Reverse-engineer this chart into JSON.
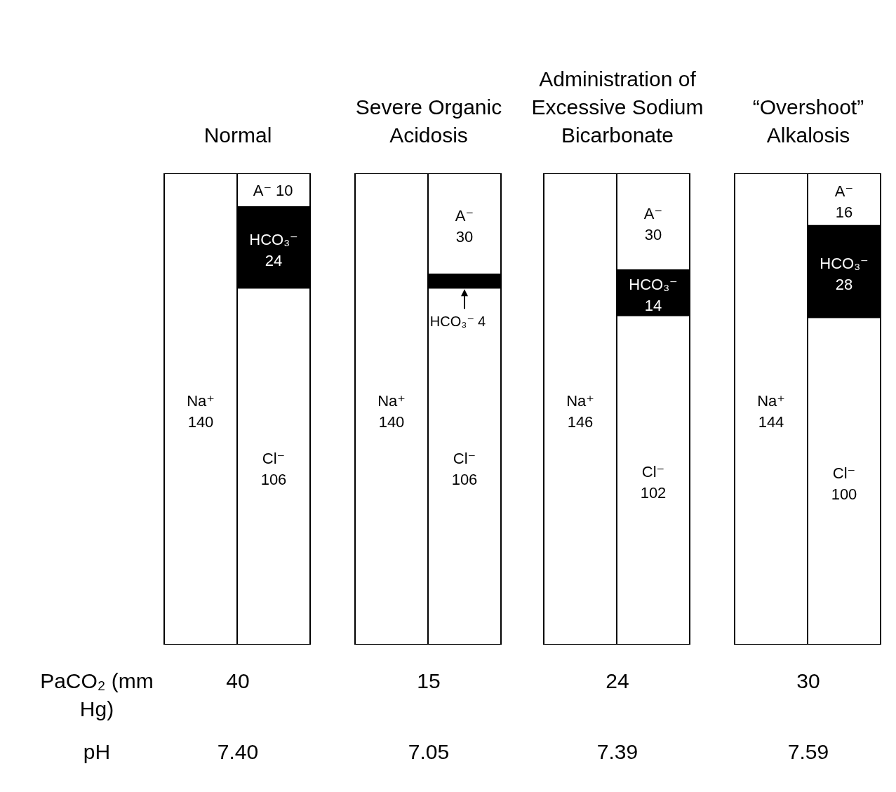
{
  "chart_data": [
    {
      "type": "bar",
      "stacked": true,
      "title": "Normal",
      "categories": [
        null,
        null
      ],
      "ylim": [
        0,
        140
      ],
      "tick_labels": false,
      "data_labels": true,
      "series": [
        {
          "name": "Na⁺",
          "color": "#ffffff",
          "values": [
            140,
            null
          ]
        },
        {
          "name": "Cl⁻",
          "color": "#ffffff",
          "values": [
            null,
            106
          ]
        },
        {
          "name": "HCO₃⁻",
          "color": "#000000",
          "values": [
            null,
            24
          ]
        },
        {
          "name": "A⁻",
          "color": "#ffffff",
          "values": [
            null,
            10
          ]
        }
      ],
      "annotations": [
        "40",
        "7.40",
        "PaCO₂ (mm Hg)",
        "pH"
      ]
    },
    {
      "type": "bar",
      "stacked": true,
      "title": "Severe Organic Acidosis",
      "categories": [
        null,
        null
      ],
      "ylim": [
        0,
        140
      ],
      "tick_labels": false,
      "data_labels": true,
      "series": [
        {
          "name": "Na⁺",
          "color": "#ffffff",
          "values": [
            140,
            null
          ]
        },
        {
          "name": "Cl⁻",
          "color": "#ffffff",
          "values": [
            null,
            106
          ]
        },
        {
          "name": "HCO₃⁻",
          "color": "#000000",
          "values": [
            null,
            4
          ]
        },
        {
          "name": "A⁻",
          "color": "#ffffff",
          "values": [
            null,
            30
          ]
        }
      ],
      "annotations": [
        "15",
        "7.05"
      ]
    },
    {
      "type": "bar",
      "stacked": true,
      "title": "Administration of Excessive Sodium Bicarbonate",
      "categories": [
        null,
        null
      ],
      "ylim": [
        0,
        146
      ],
      "tick_labels": false,
      "data_labels": true,
      "series": [
        {
          "name": "Na⁺",
          "color": "#ffffff",
          "values": [
            146,
            null
          ]
        },
        {
          "name": "Cl⁻",
          "color": "#ffffff",
          "values": [
            null,
            102
          ]
        },
        {
          "name": "HCO₃⁻",
          "color": "#000000",
          "values": [
            null,
            14
          ]
        },
        {
          "name": "A⁻",
          "color": "#ffffff",
          "values": [
            null,
            30
          ]
        }
      ],
      "annotations": [
        "24",
        "7.39"
      ]
    },
    {
      "type": "bar",
      "stacked": true,
      "title": "“Overshoot” Alkalosis",
      "categories": [
        null,
        null
      ],
      "ylim": [
        0,
        144
      ],
      "tick_labels": false,
      "data_labels": true,
      "series": [
        {
          "name": "Na⁺",
          "color": "#ffffff",
          "values": [
            144,
            null
          ]
        },
        {
          "name": "Cl⁻",
          "color": "#ffffff",
          "values": [
            null,
            100
          ]
        },
        {
          "name": "HCO₃⁻",
          "color": "#000000",
          "values": [
            null,
            28
          ]
        },
        {
          "name": "A⁻",
          "color": "#ffffff",
          "values": [
            null,
            16
          ]
        }
      ],
      "annotations": [
        "30",
        "7.59"
      ]
    }
  ]
}
